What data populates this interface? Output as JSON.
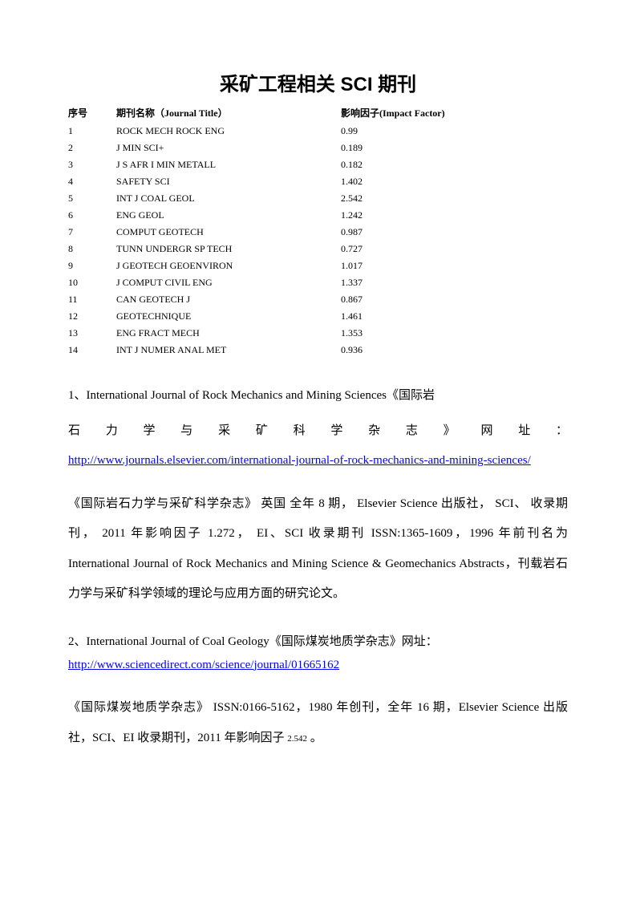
{
  "title": "采矿工程相关 SCI 期刊",
  "table": {
    "headers": {
      "num": "序号",
      "name": "期刊名称（Journal Title）",
      "factor": "影响因子(Impact Factor)"
    },
    "rows": [
      {
        "num": "1",
        "name": "ROCK MECH ROCK ENG",
        "factor": "0.99"
      },
      {
        "num": "2",
        "name": "J MIN SCI+",
        "factor": "0.189"
      },
      {
        "num": "3",
        "name": "J S AFR I MIN METALL",
        "factor": "0.182"
      },
      {
        "num": "4",
        "name": "SAFETY SCI",
        "factor": "1.402"
      },
      {
        "num": "5",
        "name": "INT J COAL GEOL",
        "factor": "2.542"
      },
      {
        "num": "6",
        "name": "ENG GEOL",
        "factor": "1.242"
      },
      {
        "num": "7",
        "name": "COMPUT GEOTECH",
        "factor": "0.987"
      },
      {
        "num": "8",
        "name": "TUNN UNDERGR SP TECH",
        "factor": "0.727"
      },
      {
        "num": "9",
        "name": "J GEOTECH GEOENVIRON",
        "factor": "1.017"
      },
      {
        "num": "10",
        "name": "J COMPUT CIVIL ENG",
        "factor": "1.337"
      },
      {
        "num": "11",
        "name": "CAN GEOTECH J",
        "factor": "0.867"
      },
      {
        "num": "12",
        "name": "GEOTECHNIQUE",
        "factor": "1.461"
      },
      {
        "num": "13",
        "name": "ENG FRACT MECH",
        "factor": "1.353"
      },
      {
        "num": "14",
        "name": "INT J NUMER ANAL MET",
        "factor": "0.936"
      }
    ]
  },
  "section1": {
    "title_line1": "1、International Journal of Rock Mechanics and Mining Sciences《国际岩",
    "title_line2": "石力学与采矿科学杂志》网址：",
    "link": "http://www.journals.elsevier.com/international-journal-of-rock-mechanics-and-mining-sciences/",
    "paragraph": "《国际岩石力学与采矿科学杂志》 英国 全年 8 期， Elsevier Science 出版社， SCI、 收录期刊， 2011 年影响因子 1.272， EI、SCI 收录期刊 ISSN:1365-1609，1996 年前刊名为 International Journal of Rock Mechanics and Mining Science & Geomechanics Abstracts，刊载岩石力学与采矿科学领域的理论与应用方面的研究论文。"
  },
  "section2": {
    "title": "2、International Journal of Coal Geology《国际煤炭地质学杂志》网址：",
    "link": "http://www.sciencedirect.com/science/journal/01665162",
    "paragraph_part1": "《国际煤炭地质学杂志》 ISSN:0166-5162，1980 年创刊，全年 16 期，Elsevier Science 出版社，SCI、EI 收录期刊，2011 年影响因子 ",
    "paragraph_part2": "2.542",
    "paragraph_part3": " 。"
  }
}
